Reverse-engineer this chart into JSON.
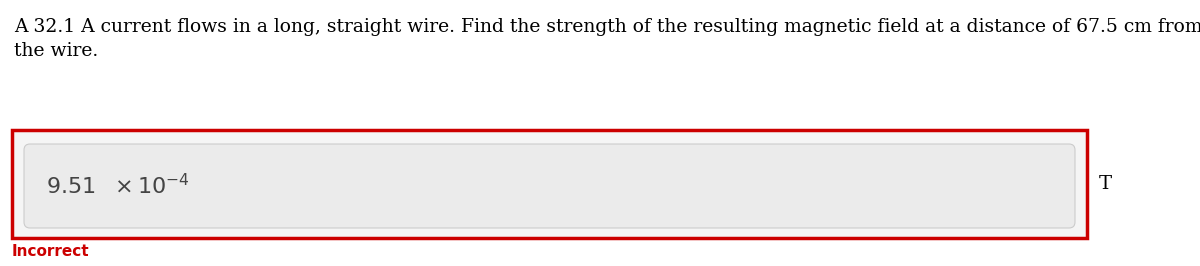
{
  "question_text_line1": "A 32.1 A current flows in a long, straight wire. Find the strength of the resulting magnetic field at a distance of 67.5 cm from",
  "question_text_line2": "the wire.",
  "unit": "T",
  "feedback": "Incorrect",
  "bg_color": "#ffffff",
  "outer_box_bg": "#f5f5f5",
  "inner_box_bg": "#ebebeb",
  "outer_border_color": "#cc0000",
  "inner_box_border_color": "#cccccc",
  "feedback_color": "#cc0000",
  "question_font_size": 13.5,
  "answer_font_size": 16,
  "unit_font_size": 14,
  "feedback_font_size": 11
}
